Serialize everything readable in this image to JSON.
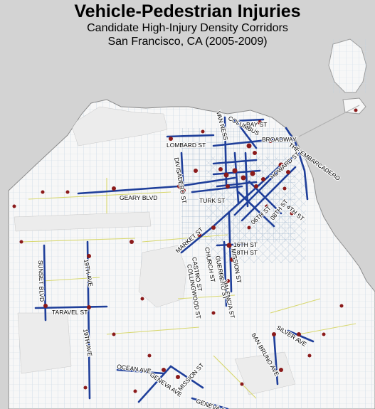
{
  "title": "Vehicle-Pedestrian Injuries",
  "subtitle_1": "Candidate High-Injury Density Corridors",
  "subtitle_2": "San Francisco, CA (2005-2009)",
  "colors": {
    "background": "#d3d3d3",
    "land": "#f7f7f7",
    "street_low": "#b9cde0",
    "street_mid": "#e0e07a",
    "corridor": "#1f3f9a",
    "injury_point": "#8b1a1a"
  },
  "street_labels": [
    {
      "id": "bay-st",
      "text": "BAY ST"
    },
    {
      "id": "van-ness",
      "text": "VAN NESS"
    },
    {
      "id": "columbus",
      "text": "COLUMBUS"
    },
    {
      "id": "broadway",
      "text": "BROADWAY"
    },
    {
      "id": "lombard-st",
      "text": "LOMBARD ST"
    },
    {
      "id": "the-embarcadero",
      "text": "THE EMBARCADERO"
    },
    {
      "id": "divisadero-st",
      "text": "DIVISADERO ST"
    },
    {
      "id": "geary-blvd",
      "text": "GEARY BLVD"
    },
    {
      "id": "turk-st",
      "text": "TURK ST"
    },
    {
      "id": "howard-st",
      "text": "HOWARD ST"
    },
    {
      "id": "4th-st",
      "text": "4TH ST"
    },
    {
      "id": "06th-st",
      "text": "06TH ST"
    },
    {
      "id": "08th-st",
      "text": "08TH ST"
    },
    {
      "id": "market-st",
      "text": "MARKET ST"
    },
    {
      "id": "16th-st",
      "text": "16TH ST"
    },
    {
      "id": "18th-st",
      "text": "18TH ST"
    },
    {
      "id": "church-st",
      "text": "CHURCH ST"
    },
    {
      "id": "castro-st",
      "text": "CASTRO ST"
    },
    {
      "id": "collingwood-st",
      "text": "COLLINGWOOD ST"
    },
    {
      "id": "mission-st",
      "text": "MISSION ST"
    },
    {
      "id": "guerrero-st",
      "text": "GUERRERO ST"
    },
    {
      "id": "valencia-st",
      "text": "VALENCIA ST"
    },
    {
      "id": "sunset-blvd",
      "text": "SUNSET BLVD"
    },
    {
      "id": "19th-ave-north",
      "text": "19TH AVE"
    },
    {
      "id": "taravel-st",
      "text": "TARAVEL ST"
    },
    {
      "id": "19th-ave-south",
      "text": "19TH AVE"
    },
    {
      "id": "san-bruno-ave",
      "text": "SAN BRUNO AVE"
    },
    {
      "id": "silver-ave",
      "text": "SILVER AVE"
    },
    {
      "id": "ocean-ave",
      "text": "OCEAN AVE"
    },
    {
      "id": "geneva-ave-west",
      "text": "GENEVA AVE"
    },
    {
      "id": "mission-st-south",
      "text": "MISSION ST"
    },
    {
      "id": "geneva-ave-east",
      "text": "GENEVA AVE"
    }
  ]
}
